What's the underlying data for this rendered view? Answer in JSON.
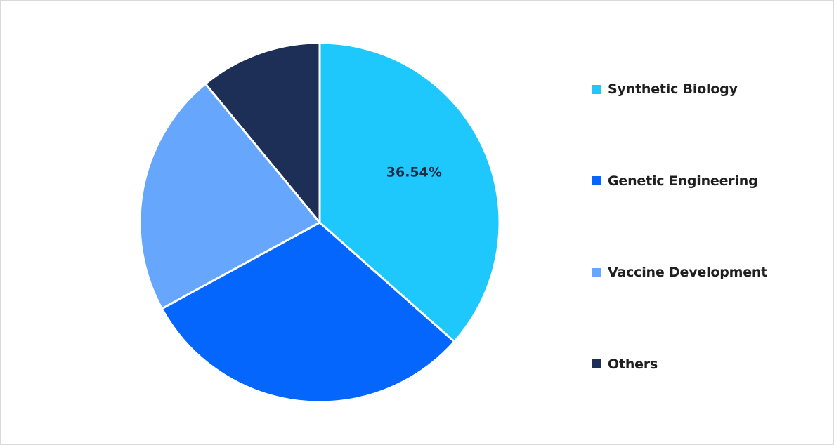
{
  "chart_data": {
    "type": "pie",
    "title": "",
    "categories": [
      "Synthetic Biology",
      "Genetic Engineering",
      "Vaccine Development",
      "Others"
    ],
    "values": [
      36.54,
      30.5,
      22.0,
      10.96
    ],
    "colors": [
      "#1ec8fd",
      "#0466fd",
      "#66a6fd",
      "#1d2f56"
    ],
    "data_labels": [
      "36.54%",
      "",
      "",
      ""
    ],
    "legend": {
      "placement": "right",
      "entries": [
        "Synthetic Biology",
        "Genetic Engineering",
        "Vaccine Development",
        "Others"
      ]
    }
  }
}
